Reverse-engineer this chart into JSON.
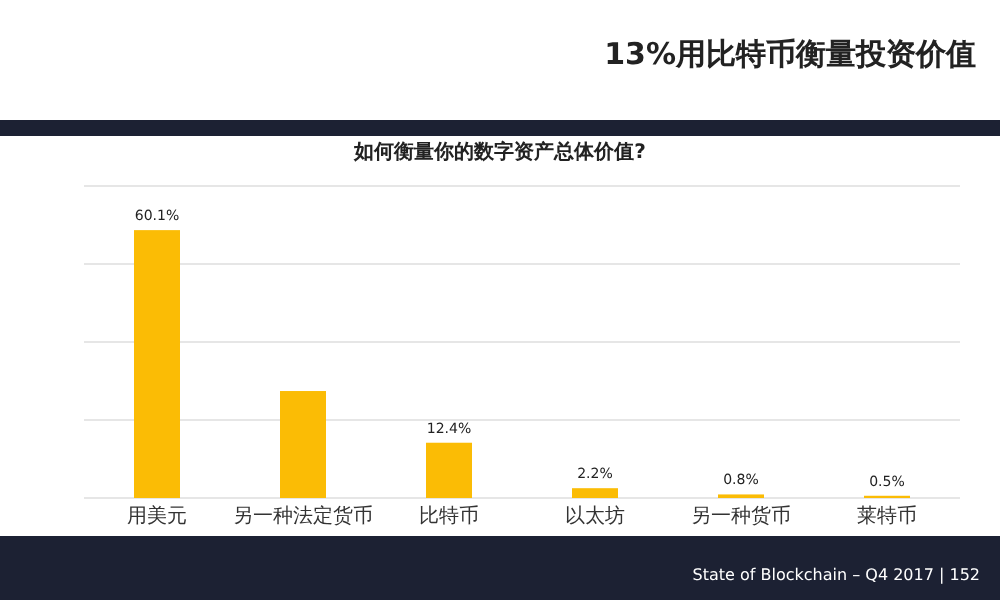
{
  "chart_data": {
    "type": "bar",
    "title": "13%用比特币衡量投资价值",
    "subtitle": "如何衡量你的数字资产总体价值?",
    "categories": [
      "用美元",
      "另一种法定货币",
      "比特币",
      "以太坊",
      "另一种货币",
      "莱特币"
    ],
    "values": [
      60.1,
      24.0,
      12.4,
      2.2,
      0.8,
      0.5
    ],
    "value_labels": [
      "60.1%",
      null,
      "12.4%",
      "2.2%",
      "0.8%",
      "0.5%"
    ],
    "color": "#fbbc05",
    "ylim": [
      0,
      70
    ],
    "grid": "y",
    "annotations": [
      "State of Blockchain – Q4 2017 | 152"
    ]
  }
}
